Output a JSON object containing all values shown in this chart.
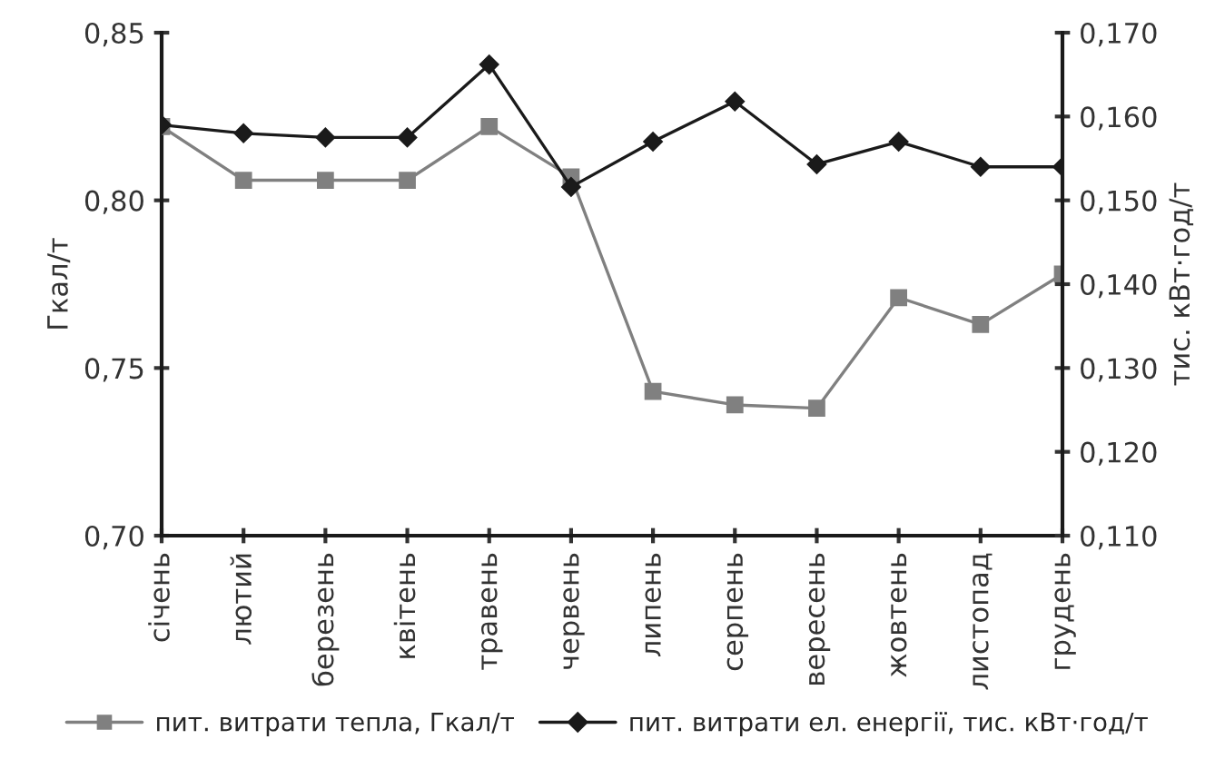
{
  "chart_data": {
    "type": "line",
    "ylabel": "Гкал/т",
    "y2label": "тис. кВт·год/т",
    "categories": [
      "січень",
      "лютий",
      "березень",
      "квітень",
      "травень",
      "червень",
      "липень",
      "серпень",
      "вересень",
      "жовтень",
      "листопад",
      "грудень"
    ],
    "series": [
      {
        "name": "пит. витрати тепла, Гкал/т",
        "color": "#808080",
        "marker": "square",
        "values": [
          0.822,
          0.806,
          0.806,
          0.806,
          0.822,
          0.807,
          0.743,
          0.739,
          0.738,
          0.771,
          0.763,
          0.778
        ]
      },
      {
        "name": "пит. витрати ел. енергії, тис. кВт·год/т",
        "color": "#1a1a1a",
        "marker": "diamond",
        "axis": "y2",
        "values": [
          0.159,
          0.158,
          0.1575,
          0.1575,
          0.1662,
          0.1516,
          0.157,
          0.1618,
          0.1543,
          0.157,
          0.154,
          0.154
        ]
      }
    ],
    "ylim": [
      0.7,
      0.85
    ],
    "yticks": [
      {
        "value": 0.7,
        "label": "0,70"
      },
      {
        "value": 0.75,
        "label": "0,75"
      },
      {
        "value": 0.8,
        "label": "0,80"
      },
      {
        "value": 0.85,
        "label": "0,85"
      }
    ],
    "y2lim": [
      0.11,
      0.17
    ],
    "y2ticks": [
      {
        "value": 0.11,
        "label": "0,110"
      },
      {
        "value": 0.12,
        "label": "0,120"
      },
      {
        "value": 0.13,
        "label": "0,130"
      },
      {
        "value": 0.14,
        "label": "0,140"
      },
      {
        "value": 0.15,
        "label": "0,150"
      },
      {
        "value": 0.16,
        "label": "0,160"
      },
      {
        "value": 0.17,
        "label": "0,170"
      }
    ],
    "legend": "bottom",
    "grid": false
  }
}
